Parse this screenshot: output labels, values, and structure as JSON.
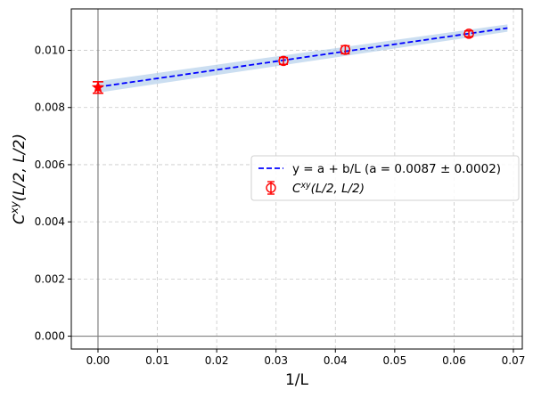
{
  "chart_data": {
    "type": "scatter",
    "xlabel": "1/L",
    "ylabel": "C^{xy}(L/2, L/2)",
    "xlim": [
      -0.0045,
      0.0715
    ],
    "ylim": [
      -0.00045,
      0.01145
    ],
    "x_ticks": [
      0.0,
      0.01,
      0.02,
      0.03,
      0.04,
      0.05,
      0.06,
      0.07
    ],
    "x_tick_labels": [
      "0.00",
      "0.01",
      "0.02",
      "0.03",
      "0.04",
      "0.05",
      "0.06",
      "0.07"
    ],
    "y_ticks": [
      0.0,
      0.002,
      0.004,
      0.006,
      0.008,
      0.01
    ],
    "y_tick_labels": [
      "0.000",
      "0.002",
      "0.004",
      "0.006",
      "0.008",
      "0.010"
    ],
    "grid": true,
    "legend_position": "center-right",
    "series": [
      {
        "kind": "errorbar",
        "legend_label": "C^{xy}(L/2, L/2)",
        "color": "#ff0000",
        "marker": "open-circle",
        "x": [
          0.03125,
          0.041667,
          0.0625
        ],
        "y": [
          0.00963,
          0.01002,
          0.01058
        ],
        "yerr": [
          0.00012,
          0.00014,
          0.0001
        ]
      },
      {
        "kind": "fit-line",
        "legend_label": "y = a + b/L  (a = 0.0087 ± 0.0002)",
        "color": "#0000ff",
        "style": "dashed",
        "x": [
          0.0,
          0.069
        ],
        "y": [
          0.00872,
          0.01078
        ],
        "band_color": "#a8c8e8",
        "band_halfwidth": [
          0.0002,
          0.00013
        ]
      },
      {
        "kind": "extrapolated-point",
        "color": "#ff0000",
        "marker": "filled-star",
        "x": [
          0.0
        ],
        "y": [
          0.0087
        ],
        "yerr": [
          0.0002
        ]
      }
    ]
  }
}
